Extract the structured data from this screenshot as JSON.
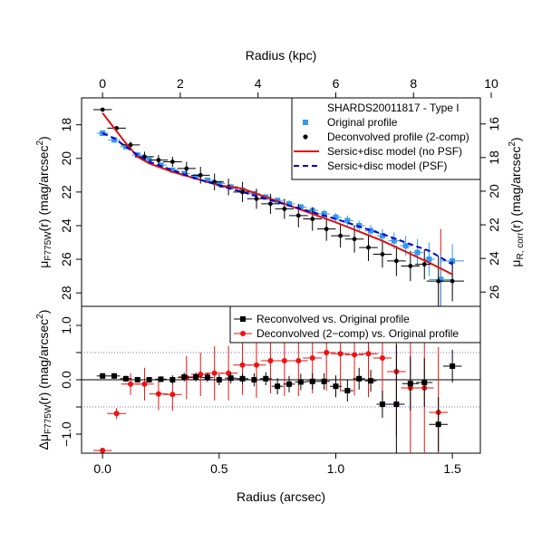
{
  "chart_data": [
    {
      "type": "scatter",
      "panel": "top",
      "title": "",
      "xlabel": "Radius (kpc)",
      "ylabel": "μF775W(r) (mag/arcsec2)",
      "ylabel_parts": {
        "mu": "μ",
        "sub": "F775W",
        "rest": "(r) (mag/arcsec",
        "sup": "2",
        "close": ")"
      },
      "y2label": "μR, corr(r) (mag/arcsec2)",
      "y2label_parts": {
        "mu": "μ",
        "sub": "R, corr",
        "rest": "(r) (mag/arcsec",
        "sup": "2",
        "close": ")"
      },
      "xlim_arcsec": [
        -0.09,
        1.62
      ],
      "kpc_per_arcsec": 6.0,
      "ylim": [
        28.8,
        16.4
      ],
      "y_reversed": true,
      "x_top_ticks": [
        0,
        2,
        4,
        6,
        8,
        10
      ],
      "y_left_ticks": [
        18,
        20,
        22,
        24,
        26,
        28
      ],
      "y_right_ticks": [
        16,
        18,
        20,
        22,
        24,
        26
      ],
      "y_right_offset": -1.95,
      "legend_placement": "top-right",
      "legend": {
        "header": "SHARDS20011817  -  Type I",
        "entries": [
          "Original profile",
          "Deconvolved profile (2-comp)",
          "Sersic+disc model (no PSF)",
          "Sersic+disc model (PSF)"
        ]
      },
      "colors": {
        "original": "#3399ee",
        "deconvolved": "#000000",
        "model_nopsf": "#dd1111",
        "model_psf": "#0000cc"
      },
      "series": [
        {
          "name": "Original profile",
          "style": "square",
          "x": [
            0.0,
            0.05,
            0.1,
            0.15,
            0.2,
            0.25,
            0.3,
            0.35,
            0.4,
            0.45,
            0.5,
            0.55,
            0.6,
            0.65,
            0.7,
            0.75,
            0.8,
            0.85,
            0.9,
            0.95,
            1.0,
            1.05,
            1.1,
            1.15,
            1.2,
            1.25,
            1.3,
            1.35,
            1.4,
            1.45,
            1.5
          ],
          "y": [
            18.5,
            18.9,
            19.3,
            19.8,
            20.1,
            20.4,
            20.7,
            20.9,
            21.1,
            21.3,
            21.5,
            21.7,
            21.9,
            22.1,
            22.3,
            22.5,
            22.7,
            22.9,
            23.1,
            23.3,
            23.5,
            23.7,
            24.0,
            24.3,
            24.6,
            24.9,
            25.2,
            25.6,
            26.0,
            27.2,
            26.1
          ],
          "yerr": [
            0.05,
            0.05,
            0.05,
            0.05,
            0.05,
            0.05,
            0.08,
            0.08,
            0.08,
            0.1,
            0.1,
            0.12,
            0.12,
            0.15,
            0.15,
            0.15,
            0.2,
            0.2,
            0.2,
            0.25,
            0.25,
            0.3,
            0.3,
            0.35,
            0.4,
            0.5,
            0.6,
            0.8,
            1.0,
            1.6,
            1.0
          ],
          "xerr": [
            0.025,
            0.025,
            0.025,
            0.025,
            0.025,
            0.025,
            0.025,
            0.025,
            0.025,
            0.025,
            0.025,
            0.025,
            0.025,
            0.025,
            0.025,
            0.025,
            0.025,
            0.025,
            0.025,
            0.025,
            0.025,
            0.025,
            0.025,
            0.025,
            0.025,
            0.025,
            0.025,
            0.025,
            0.025,
            0.05,
            0.05
          ]
        },
        {
          "name": "Deconvolved profile (2-comp)",
          "style": "circle",
          "x": [
            0.0,
            0.06,
            0.12,
            0.18,
            0.24,
            0.3,
            0.36,
            0.42,
            0.48,
            0.54,
            0.6,
            0.66,
            0.72,
            0.78,
            0.84,
            0.9,
            0.96,
            1.02,
            1.08,
            1.14,
            1.2,
            1.26,
            1.32,
            1.38,
            1.44,
            1.5
          ],
          "y": [
            17.1,
            18.2,
            19.2,
            19.9,
            20.1,
            20.2,
            20.6,
            21.0,
            21.4,
            21.7,
            22.0,
            22.4,
            22.7,
            23.0,
            23.4,
            23.6,
            24.2,
            24.6,
            24.8,
            25.3,
            25.7,
            26.1,
            26.4,
            26.3,
            27.3,
            27.3
          ],
          "xerr": [
            0.04,
            0.04,
            0.04,
            0.04,
            0.04,
            0.04,
            0.04,
            0.04,
            0.04,
            0.04,
            0.04,
            0.04,
            0.04,
            0.04,
            0.04,
            0.04,
            0.04,
            0.04,
            0.04,
            0.04,
            0.04,
            0.04,
            0.04,
            0.04,
            0.05,
            0.05
          ],
          "yerr": [
            0.05,
            0.1,
            0.2,
            0.3,
            0.3,
            0.3,
            0.4,
            0.5,
            0.5,
            0.5,
            0.6,
            0.6,
            0.6,
            0.6,
            0.7,
            0.7,
            0.7,
            0.7,
            0.8,
            0.8,
            0.8,
            0.9,
            0.9,
            0.9,
            1.5,
            1.2
          ]
        },
        {
          "name": "Sersic+disc model (no PSF)",
          "style": "solid-line",
          "x": [
            0.0,
            0.1,
            0.15,
            0.2,
            0.3,
            0.4,
            0.5,
            0.6,
            0.8,
            1.0,
            1.2,
            1.4,
            1.5
          ],
          "y": [
            17.3,
            19.1,
            19.9,
            20.3,
            20.8,
            21.2,
            21.6,
            21.8,
            22.8,
            23.8,
            24.9,
            26.2,
            26.9
          ]
        },
        {
          "name": "Sersic+disc model (PSF)",
          "style": "dashed-line",
          "x": [
            0.0,
            0.05,
            0.1,
            0.15,
            0.2,
            0.3,
            0.4,
            0.5,
            0.6,
            0.8,
            1.0,
            1.2,
            1.4,
            1.5
          ],
          "y": [
            18.5,
            18.8,
            19.3,
            19.8,
            20.2,
            20.7,
            21.2,
            21.6,
            22.0,
            22.8,
            23.6,
            24.5,
            25.5,
            26.3
          ]
        }
      ],
      "vertical_line": {
        "x": 1.45,
        "y_to": 28.8,
        "y_from": 24.2,
        "color": "#dd1111"
      }
    },
    {
      "type": "scatter",
      "panel": "bottom",
      "title": "",
      "xlabel": "Radius (arcsec)",
      "ylabel": "ΔμF775W(r) (mag/arcsec2)",
      "ylabel_parts": {
        "mu": "Δμ",
        "sub": "F775W",
        "rest": "(r) (mag/arcsec",
        "sup": "2",
        "close": ")"
      },
      "xlim": [
        -0.09,
        1.62
      ],
      "ylim": [
        -1.35,
        1.35
      ],
      "x_ticks": [
        0.0,
        0.5,
        1.0,
        1.5
      ],
      "x_tick_labels": [
        "0.0",
        "0.5",
        "1.0",
        "1.5"
      ],
      "y_ticks": [
        -1.0,
        -0.5,
        0.0,
        0.5,
        1.0
      ],
      "y_tick_labels": [
        "−1.0",
        "",
        "0.0",
        "",
        "1.0"
      ],
      "reference_lines": {
        "zero": 0.0,
        "dotted": [
          0.5,
          -0.5
        ]
      },
      "legend_placement": "top-right",
      "legend": {
        "entries": [
          "Reconvolved vs. Original profile",
          "Deconvolved (2−comp) vs. Original profile"
        ]
      },
      "colors": {
        "reconvolved": "#000000",
        "deconvolved": "#ee1111",
        "dotted": "#7777cc"
      },
      "series": [
        {
          "name": "Reconvolved vs. Original profile",
          "style": "square",
          "x": [
            0.0,
            0.05,
            0.1,
            0.15,
            0.2,
            0.25,
            0.3,
            0.35,
            0.4,
            0.45,
            0.5,
            0.55,
            0.6,
            0.65,
            0.7,
            0.75,
            0.8,
            0.85,
            0.9,
            0.95,
            1.0,
            1.05,
            1.1,
            1.15,
            1.2,
            1.26,
            1.32,
            1.38,
            1.44,
            1.5
          ],
          "y": [
            0.07,
            0.07,
            0.02,
            0.0,
            0.0,
            0.01,
            0.0,
            0.05,
            0.05,
            0.04,
            0.0,
            0.03,
            0.02,
            0.0,
            0.02,
            -0.12,
            -0.08,
            -0.04,
            -0.03,
            -0.03,
            -0.12,
            -0.2,
            0.02,
            -0.02,
            -0.45,
            -0.45,
            -0.07,
            -0.05,
            -0.82,
            0.25
          ],
          "yerr": [
            0.05,
            0.05,
            0.05,
            0.05,
            0.05,
            0.05,
            0.08,
            0.08,
            0.08,
            0.08,
            0.1,
            0.1,
            0.1,
            0.12,
            0.12,
            0.15,
            0.15,
            0.15,
            0.15,
            0.15,
            0.2,
            0.2,
            0.2,
            0.2,
            0.25,
            1.1,
            0.5,
            0.45,
            0.5,
            0.3
          ],
          "xerr": [
            0.025,
            0.025,
            0.025,
            0.025,
            0.025,
            0.025,
            0.025,
            0.025,
            0.025,
            0.025,
            0.025,
            0.025,
            0.025,
            0.025,
            0.025,
            0.025,
            0.025,
            0.025,
            0.025,
            0.025,
            0.025,
            0.025,
            0.025,
            0.025,
            0.025,
            0.035,
            0.035,
            0.035,
            0.04,
            0.04
          ]
        },
        {
          "name": "Deconvolved (2−comp) vs. Original profile",
          "style": "circle",
          "x": [
            0.0,
            0.06,
            0.12,
            0.18,
            0.24,
            0.3,
            0.36,
            0.42,
            0.48,
            0.54,
            0.6,
            0.66,
            0.72,
            0.78,
            0.84,
            0.9,
            0.96,
            1.02,
            1.08,
            1.14,
            1.2,
            1.26,
            1.32,
            1.38,
            1.44
          ],
          "y": [
            -1.3,
            -0.62,
            -0.08,
            -0.08,
            -0.26,
            -0.27,
            0.04,
            0.1,
            0.12,
            0.12,
            0.27,
            0.27,
            0.35,
            0.35,
            0.35,
            0.4,
            0.5,
            0.48,
            0.46,
            0.48,
            0.4,
            0.15,
            -0.15,
            -0.15,
            -0.6
          ],
          "xerr": [
            0.04,
            0.04,
            0.04,
            0.04,
            0.04,
            0.04,
            0.04,
            0.04,
            0.04,
            0.04,
            0.04,
            0.04,
            0.04,
            0.04,
            0.04,
            0.04,
            0.04,
            0.04,
            0.04,
            0.04,
            0.04,
            0.04,
            0.04,
            0.04,
            0.04
          ],
          "yerr": [
            0.05,
            0.1,
            0.2,
            0.3,
            0.3,
            0.3,
            0.4,
            0.4,
            0.5,
            0.5,
            0.55,
            0.6,
            0.6,
            0.65,
            0.65,
            0.65,
            0.7,
            0.7,
            0.75,
            0.8,
            0.9,
            1.2,
            1.2,
            1.2,
            1.2
          ]
        }
      ]
    }
  ]
}
